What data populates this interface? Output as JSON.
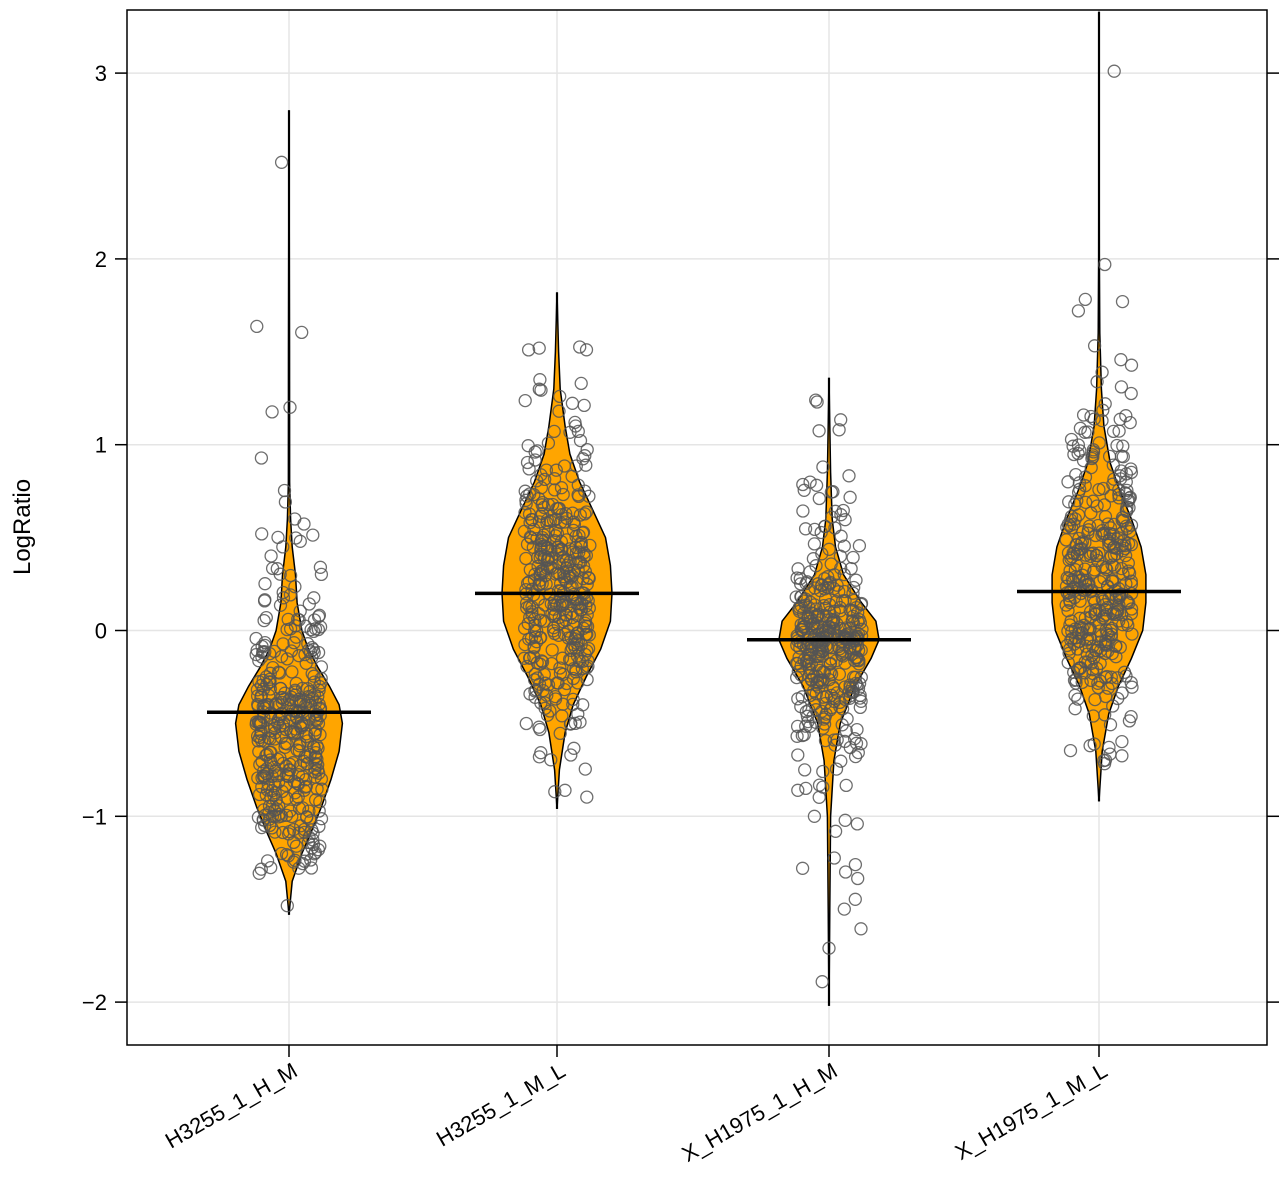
{
  "chart_data": {
    "type": "violin",
    "title": "",
    "xlabel": "",
    "ylabel": "LogRatio",
    "categories": [
      "H3255_1_H_M",
      "H3255_1_M_L",
      "X_H1975_1_H_M",
      "X_H1975_1_M_L"
    ],
    "ylim": [
      -2.25,
      3.3
    ],
    "yticks": [
      -2,
      -1,
      0,
      1,
      2,
      3
    ],
    "ytick_labels": [
      "−2",
      "−1",
      "0",
      "1",
      "2",
      "3"
    ],
    "grid": true,
    "colors": {
      "violin_fill": "#FFA500",
      "outline": "#000000",
      "points": "#555555",
      "grid": "#E5E5E5"
    },
    "series": [
      {
        "category": "H3255_1_H_M",
        "median": -0.44,
        "range": [
          -1.53,
          2.8
        ],
        "density": [
          [
            -1.53,
            0.0
          ],
          [
            -1.35,
            0.02
          ],
          [
            -1.2,
            0.08
          ],
          [
            -1.1,
            0.13
          ],
          [
            -0.95,
            0.2
          ],
          [
            -0.8,
            0.26
          ],
          [
            -0.65,
            0.31
          ],
          [
            -0.5,
            0.33
          ],
          [
            -0.4,
            0.31
          ],
          [
            -0.3,
            0.25
          ],
          [
            -0.2,
            0.18
          ],
          [
            -0.1,
            0.12
          ],
          [
            0.0,
            0.08
          ],
          [
            0.15,
            0.05
          ],
          [
            0.3,
            0.04
          ],
          [
            0.45,
            0.02
          ],
          [
            0.6,
            0.01
          ],
          [
            0.8,
            0.004
          ],
          [
            1.5,
            0.003
          ],
          [
            2.8,
            0.0
          ]
        ],
        "outliers": [
          2.52,
          0.52,
          0.45,
          -1.2,
          -1.24,
          -1.17,
          -1.09
        ]
      },
      {
        "category": "H3255_1_M_L",
        "median": 0.2,
        "range": [
          -0.96,
          1.82
        ],
        "density": [
          [
            -0.96,
            0.0
          ],
          [
            -0.75,
            0.015
          ],
          [
            -0.55,
            0.05
          ],
          [
            -0.4,
            0.1
          ],
          [
            -0.25,
            0.18
          ],
          [
            -0.1,
            0.27
          ],
          [
            0.05,
            0.33
          ],
          [
            0.2,
            0.34
          ],
          [
            0.35,
            0.33
          ],
          [
            0.5,
            0.3
          ],
          [
            0.65,
            0.22
          ],
          [
            0.8,
            0.14
          ],
          [
            0.95,
            0.08
          ],
          [
            1.1,
            0.05
          ],
          [
            1.3,
            0.02
          ],
          [
            1.5,
            0.01
          ],
          [
            1.82,
            0.0
          ]
        ],
        "outliers": [
          1.52,
          1.51,
          1.35,
          1.33,
          1.26,
          -0.67,
          -0.5
        ]
      },
      {
        "category": "X_H1975_1_H_M",
        "median": -0.05,
        "range": [
          -2.02,
          1.36
        ],
        "density": [
          [
            -2.02,
            0.0
          ],
          [
            -1.5,
            0.005
          ],
          [
            -1.0,
            0.01
          ],
          [
            -0.7,
            0.03
          ],
          [
            -0.5,
            0.07
          ],
          [
            -0.3,
            0.16
          ],
          [
            -0.15,
            0.26
          ],
          [
            -0.05,
            0.31
          ],
          [
            0.05,
            0.29
          ],
          [
            0.15,
            0.2
          ],
          [
            0.3,
            0.09
          ],
          [
            0.45,
            0.04
          ],
          [
            0.6,
            0.02
          ],
          [
            0.85,
            0.01
          ],
          [
            1.36,
            0.0
          ]
        ],
        "outliers": [
          1.23,
          1.08,
          0.88,
          -1.26,
          -1.3,
          -1.28,
          -1.0,
          -1.71,
          -1.89
        ]
      },
      {
        "category": "X_H1975_1_M_L",
        "median": 0.21,
        "range": [
          -0.92,
          3.33
        ],
        "density": [
          [
            -0.92,
            0.0
          ],
          [
            -0.65,
            0.02
          ],
          [
            -0.45,
            0.06
          ],
          [
            -0.3,
            0.12
          ],
          [
            -0.15,
            0.2
          ],
          [
            0.0,
            0.27
          ],
          [
            0.15,
            0.29
          ],
          [
            0.3,
            0.29
          ],
          [
            0.45,
            0.26
          ],
          [
            0.6,
            0.2
          ],
          [
            0.75,
            0.13
          ],
          [
            0.9,
            0.07
          ],
          [
            1.1,
            0.03
          ],
          [
            1.3,
            0.015
          ],
          [
            1.6,
            0.005
          ],
          [
            2.0,
            0.002
          ],
          [
            3.33,
            0.0
          ]
        ],
        "outliers": [
          3.01,
          1.77,
          1.72,
          1.39,
          1.22,
          1.16,
          -0.62
        ]
      }
    ]
  }
}
